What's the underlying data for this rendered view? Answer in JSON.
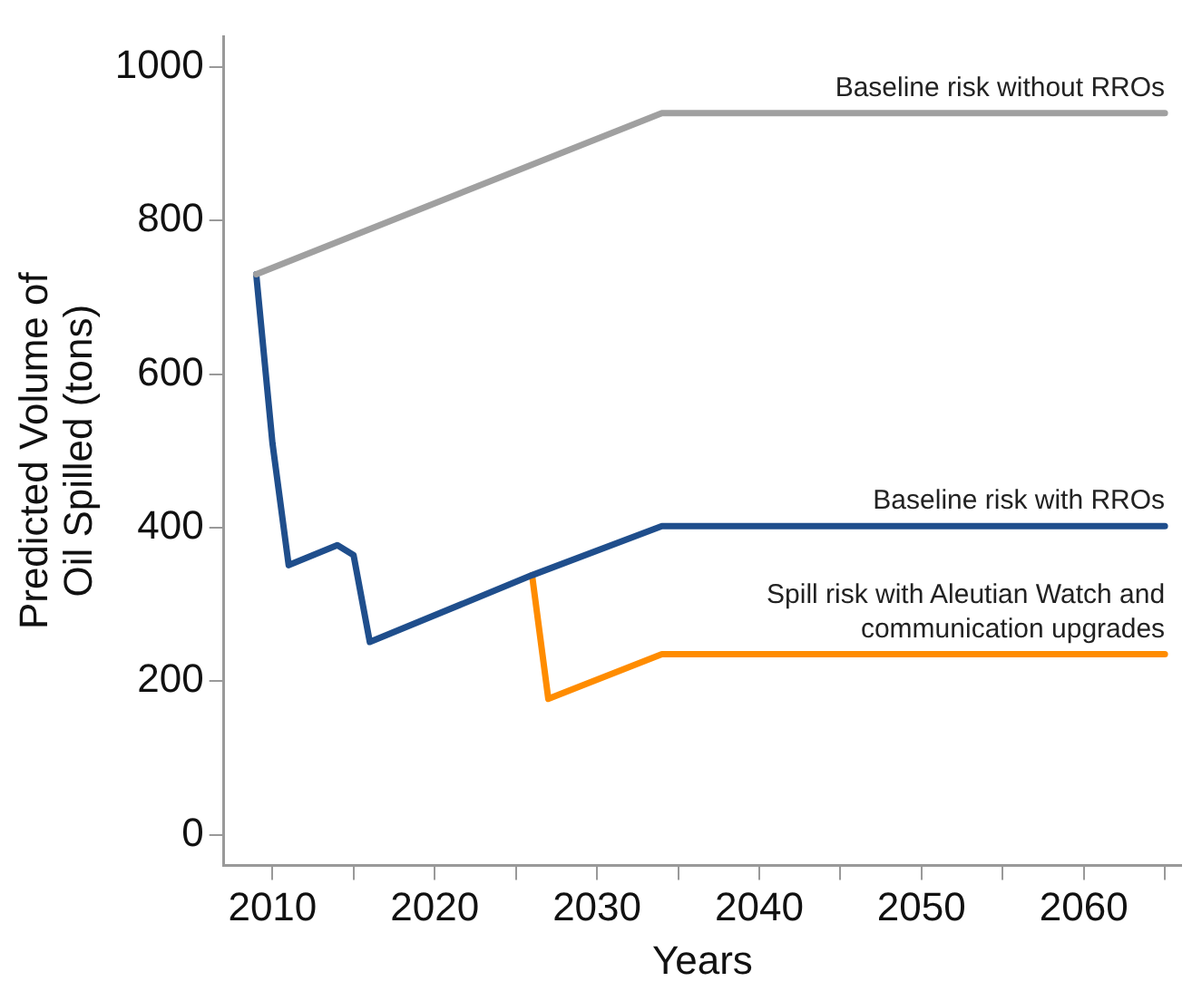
{
  "chart_data": {
    "type": "line",
    "xlabel": "Years",
    "ylabel": "Predicted Volume of Oil Spilled (tons)",
    "xlim": [
      2007,
      2066
    ],
    "xticks": [
      2010,
      {
        "value": 2015,
        "label": null
      },
      2020,
      {
        "value": 2025,
        "label": null
      },
      2030,
      {
        "value": 2035,
        "label": null
      },
      2040,
      {
        "value": 2045,
        "label": null
      },
      2050,
      {
        "value": 2055,
        "label": null
      },
      2060,
      {
        "value": 2065,
        "label": null
      }
    ],
    "ylim": [
      -40,
      1040
    ],
    "yticks": [
      0,
      200,
      400,
      600,
      800,
      1000
    ],
    "grid": false,
    "legend": false,
    "marker": "none",
    "line_style": "solid",
    "series": [
      {
        "name": "Baseline risk without RROs",
        "color": "#a0a0a0",
        "x": [
          2009,
          2034,
          2065
        ],
        "values": [
          730,
          940,
          940
        ]
      },
      {
        "name": "Baseline risk with RROs",
        "color": "#1f4e8c",
        "x": [
          2009,
          2010,
          2011,
          2014,
          2015,
          2016,
          2026,
          2034,
          2065
        ],
        "values": [
          730,
          510,
          351,
          377,
          364,
          251,
          338,
          402,
          402
        ]
      },
      {
        "name": "Spill risk with Aleutian Watch and communication upgrades",
        "color": "#ff8c00",
        "x": [
          2026,
          2027,
          2034,
          2065
        ],
        "values": [
          338,
          177,
          235,
          235
        ]
      }
    ]
  }
}
